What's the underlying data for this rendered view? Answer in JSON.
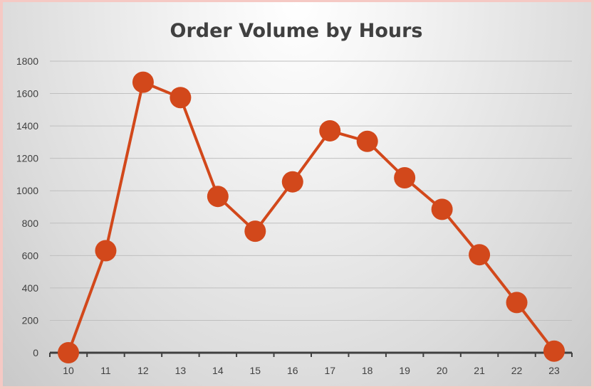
{
  "chart_data": {
    "type": "line",
    "title": "Order Volume by Hours",
    "xlabel": "",
    "ylabel": "",
    "x": [
      "10",
      "11",
      "12",
      "13",
      "14",
      "15",
      "16",
      "17",
      "18",
      "19",
      "20",
      "21",
      "22",
      "23"
    ],
    "series": [
      {
        "values": [
          0,
          630,
          1670,
          1575,
          965,
          750,
          1055,
          1370,
          1305,
          1080,
          885,
          605,
          310,
          10
        ]
      }
    ],
    "ylim": [
      0,
      1800
    ],
    "yticks": [
      0,
      200,
      400,
      600,
      800,
      1000,
      1200,
      1400,
      1600,
      1800
    ],
    "grid": true,
    "legend": "none",
    "colors": {
      "line": "#d2481b",
      "marker": "#d2481b",
      "grid": "#bfbfbf",
      "axis": "#404040",
      "frame": "#f5c9c4"
    }
  }
}
